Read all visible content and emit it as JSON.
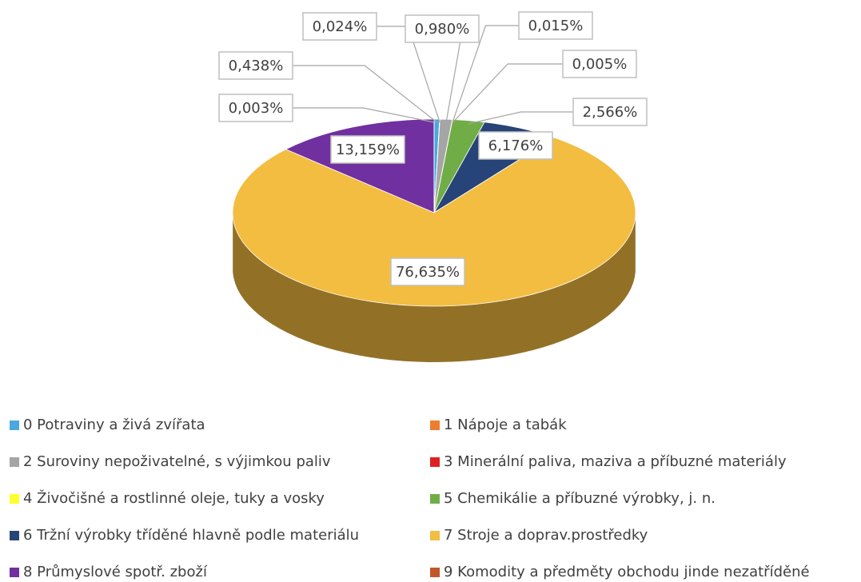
{
  "chart_data": {
    "type": "pie",
    "categories": [
      "0 Potraviny a živá zvířata",
      "1 Nápoje a tabák",
      "2 Suroviny nepoživatelné, s výjimkou paliv",
      "3 Minerální paliva, maziva a příbuzné materiály",
      "4 Živočišné a rostlinné oleje, tuky a vosky",
      "5 Chemikálie a příbuzné výrobky, j. n.",
      "6 Tržní výrobky tříděné hlavně podle materiálu",
      "7 Stroje a doprav.prostředky",
      "8 Průmyslové spotř. zboží",
      "9 Komodity a předměty obchodu jinde nezatříděné"
    ],
    "values": [
      0.438,
      0.024,
      0.98,
      0.015,
      0.005,
      2.566,
      6.176,
      76.635,
      13.159,
      0.003
    ],
    "value_labels": [
      "0,438%",
      "0,024%",
      "0,980%",
      "0,015%",
      "0,005%",
      "2,566%",
      "6,176%",
      "76,635%",
      "13,159%",
      "0,003%"
    ],
    "colors": [
      "#4aa8e0",
      "#ed7d31",
      "#a5a5a5",
      "#e02020",
      "#ffff30",
      "#70ad47",
      "#264478",
      "#f3bd41",
      "#7030a0",
      "#c0582a"
    ]
  }
}
